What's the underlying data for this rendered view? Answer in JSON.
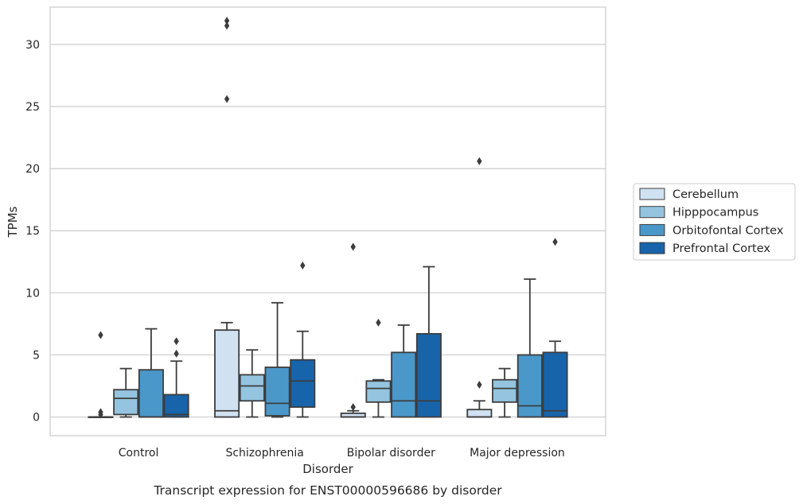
{
  "chart_data": {
    "type": "box",
    "caption": "Transcript expression for ENST00000596686 by disorder",
    "xlabel": "Disorder",
    "ylabel": "TPMs",
    "ylim": [
      -1.5,
      33
    ],
    "yticks": [
      0,
      5,
      10,
      15,
      20,
      25,
      30
    ],
    "grid": "horizontal",
    "legend_position": "right",
    "categories": [
      "Control",
      "Schizophrenia",
      "Bipolar disorder",
      "Major depression"
    ],
    "series": [
      {
        "name": "Cerebellum",
        "color": "#d0e1f2",
        "boxes": [
          {
            "whislo": 0,
            "q1": 0,
            "med": 0,
            "q3": 0,
            "whishi": 0,
            "fliers": [
              6.6,
              0.4,
              0.2
            ]
          },
          {
            "whislo": 0,
            "q1": 0,
            "med": 0.5,
            "q3": 7.0,
            "whishi": 7.6,
            "fliers": [
              31.9,
              31.5,
              25.6
            ]
          },
          {
            "whislo": 0,
            "q1": 0,
            "med": 0,
            "q3": 0.3,
            "whishi": 0.5,
            "fliers": [
              13.7,
              0.8
            ]
          },
          {
            "whislo": 0,
            "q1": 0,
            "med": 0,
            "q3": 0.6,
            "whishi": 1.3,
            "fliers": [
              20.6,
              2.6
            ]
          }
        ]
      },
      {
        "name": "Hipppocampus",
        "color": "#94c4df",
        "boxes": [
          {
            "whislo": 0,
            "q1": 0.2,
            "med": 1.5,
            "q3": 2.2,
            "whishi": 3.9,
            "fliers": []
          },
          {
            "whislo": 0,
            "q1": 1.3,
            "med": 2.5,
            "q3": 3.4,
            "whishi": 5.4,
            "fliers": []
          },
          {
            "whislo": 0,
            "q1": 1.2,
            "med": 2.3,
            "q3": 2.9,
            "whishi": 3.0,
            "fliers": [
              7.6
            ]
          },
          {
            "whislo": 0,
            "q1": 1.2,
            "med": 2.3,
            "q3": 3.0,
            "whishi": 3.9,
            "fliers": []
          }
        ]
      },
      {
        "name": "Orbitofontal Cortex",
        "color": "#4a98c9",
        "boxes": [
          {
            "whislo": 0,
            "q1": 0,
            "med": 0,
            "q3": 3.8,
            "whishi": 7.1,
            "fliers": []
          },
          {
            "whislo": 0,
            "q1": 0.1,
            "med": 1.1,
            "q3": 4.0,
            "whishi": 9.2,
            "fliers": []
          },
          {
            "whislo": 0,
            "q1": 0,
            "med": 1.3,
            "q3": 5.2,
            "whishi": 7.4,
            "fliers": []
          },
          {
            "whislo": 0,
            "q1": 0,
            "med": 0.9,
            "q3": 5.0,
            "whishi": 11.1,
            "fliers": []
          }
        ]
      },
      {
        "name": "Prefrontal Cortex",
        "color": "#1764ab",
        "boxes": [
          {
            "whislo": 0,
            "q1": 0,
            "med": 0.2,
            "q3": 1.8,
            "whishi": 4.5,
            "fliers": [
              6.1,
              5.1
            ]
          },
          {
            "whislo": 0,
            "q1": 0.8,
            "med": 2.9,
            "q3": 4.6,
            "whishi": 6.9,
            "fliers": [
              12.2
            ]
          },
          {
            "whislo": 0,
            "q1": 0,
            "med": 1.3,
            "q3": 6.7,
            "whishi": 12.1,
            "fliers": []
          },
          {
            "whislo": 0,
            "q1": 0,
            "med": 0.5,
            "q3": 5.2,
            "whishi": 6.1,
            "fliers": [
              14.1
            ]
          }
        ]
      }
    ]
  }
}
